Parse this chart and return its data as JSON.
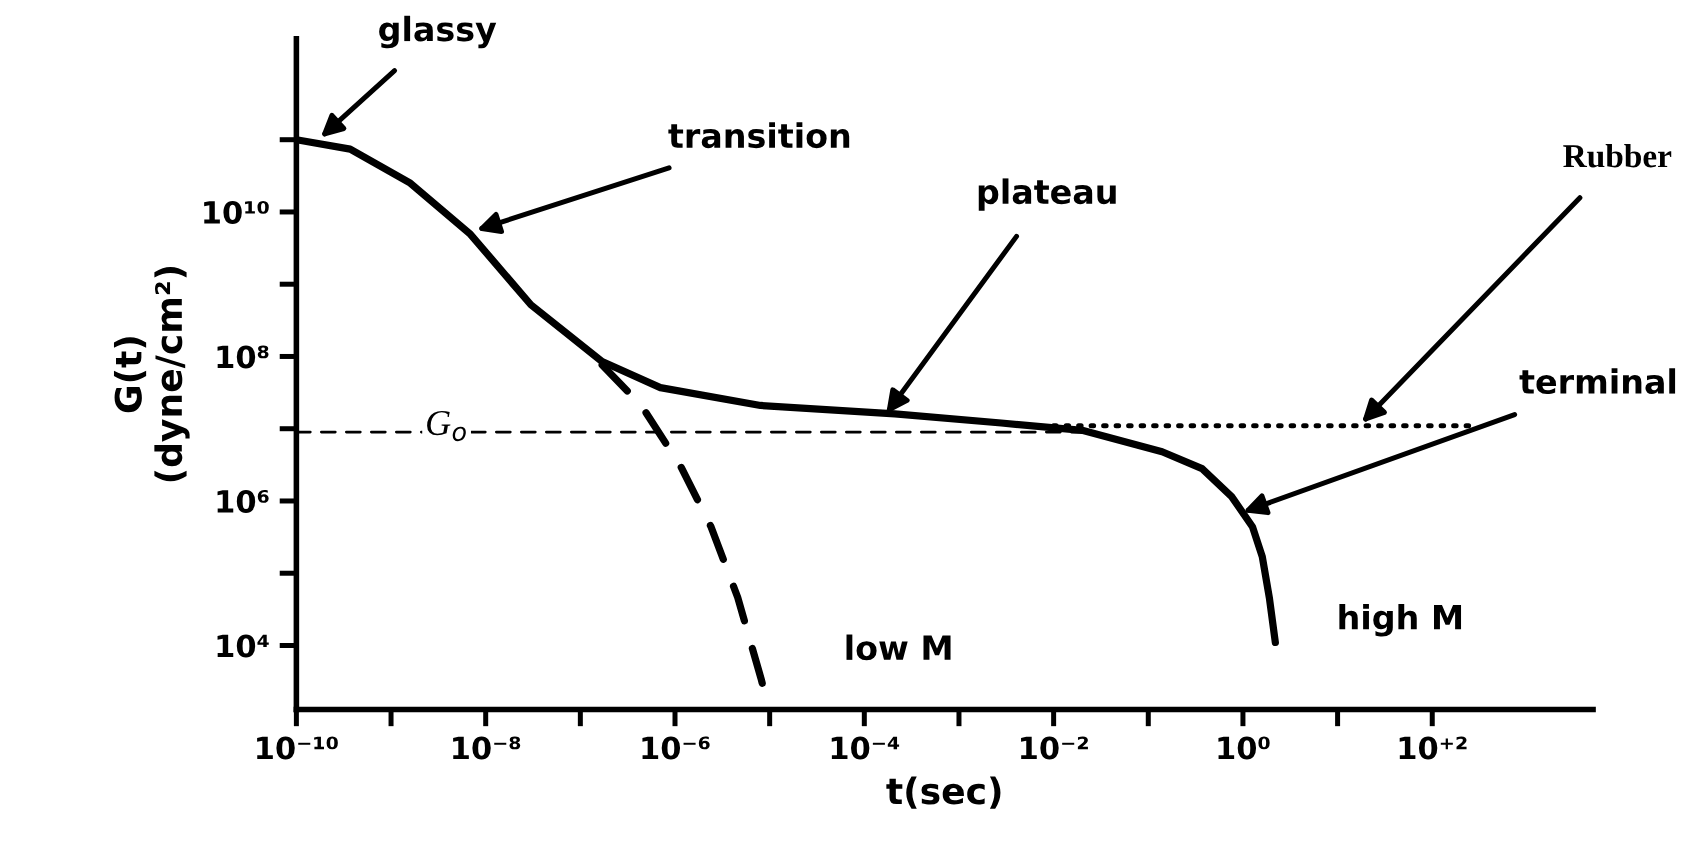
{
  "chart_data": {
    "type": "line",
    "xlabel": "t(sec)",
    "ylabel": "G(t)\n(dyne/cm²)",
    "log": "xy",
    "xlim": [
      1e-10,
      5000
    ],
    "ylim": [
      1300,
      2500000000000.0
    ],
    "xticks": [
      {
        "value": 1e-10,
        "label": "10⁻¹⁰"
      },
      {
        "value": 1e-09,
        "label": null
      },
      {
        "value": 1e-08,
        "label": "10⁻⁸"
      },
      {
        "value": 1e-07,
        "label": null
      },
      {
        "value": 1e-06,
        "label": "10⁻⁶"
      },
      {
        "value": 1e-05,
        "label": null
      },
      {
        "value": 0.0001,
        "label": "10⁻⁴"
      },
      {
        "value": 0.001,
        "label": null
      },
      {
        "value": 0.01,
        "label": "10⁻²"
      },
      {
        "value": 0.1,
        "label": null
      },
      {
        "value": 1,
        "label": "10⁰"
      },
      {
        "value": 10,
        "label": null
      },
      {
        "value": 100,
        "label": "10⁺²"
      }
    ],
    "yticks": [
      {
        "value": 10000.0,
        "label": "10⁴"
      },
      {
        "value": 100000.0,
        "label": null
      },
      {
        "value": 1000000.0,
        "label": "10⁶"
      },
      {
        "value": 10000000.0,
        "label": null
      },
      {
        "value": 100000000.0,
        "label": "10⁸"
      },
      {
        "value": 1000000000.0,
        "label": null
      },
      {
        "value": 10000000000.0,
        "label": "10¹⁰"
      },
      {
        "value": 100000000000.0,
        "label": null
      }
    ],
    "grid": false,
    "legend": false,
    "marker": "none",
    "series": [
      {
        "color": "#000000",
        "line_style": "solid",
        "x": [
          1e-10,
          3.7e-10,
          1.6e-09,
          6.9e-09,
          3e-08,
          1.7e-07,
          7e-07,
          8e-06,
          0.00021,
          0.0028,
          0.02,
          0.14,
          0.37,
          0.76,
          1.26,
          1.6,
          1.9,
          2.2
        ],
        "values": [
          100000000000.0,
          74000000000.0,
          25000000000.0,
          4900000000.0,
          520000000.0,
          85000000.0,
          37000000.0,
          21000000.0,
          16000000.0,
          12000000.0,
          9500000.0,
          4800000.0,
          2800000.0,
          1150000.0,
          440000.0,
          170000.0,
          46000.0,
          11000.0
        ]
      },
      {
        "color": "#000000",
        "line_style": "dashed",
        "x": [
          1.7e-07,
          4.4e-07,
          1.15e-06,
          2.4e-06,
          4.6e-06,
          8.1e-06,
          9.8e-06
        ],
        "values": [
          76000000.0,
          21000000.0,
          3000000.0,
          440000.0,
          46000.0,
          3500.0,
          1300.0
        ]
      },
      {
        "color": "#000000",
        "line_style": "dashed",
        "x": [
          1e-10,
          0.02
        ],
        "values": [
          9000000.0,
          9000000.0
        ]
      },
      {
        "color": "#000000",
        "line_style": "dotted",
        "x": [
          0.01,
          250
        ],
        "values": [
          11000000.0,
          11000000.0
        ]
      }
    ],
    "annotations": [
      {
        "text": "glassy",
        "x": 1.8e-10,
        "y": 107000000000.0
      },
      {
        "text": "transition",
        "x": 8e-09,
        "y": 5600000000.0
      },
      {
        "text": "plateau",
        "x": 0.00017,
        "y": 16000000.0
      },
      {
        "text": "Rubber",
        "x": 18,
        "y": 12000000.0
      },
      {
        "text": "terminal",
        "x": 1.0,
        "y": 700000.0
      },
      {
        "text": "low M",
        "x": 9e-06,
        "y": 3500.0
      },
      {
        "text": "high M",
        "x": 2.2,
        "y": 11000.0
      },
      {
        "text": "G$_{o}$",
        "x": 1e-09,
        "y": 9000000.0
      }
    ]
  }
}
